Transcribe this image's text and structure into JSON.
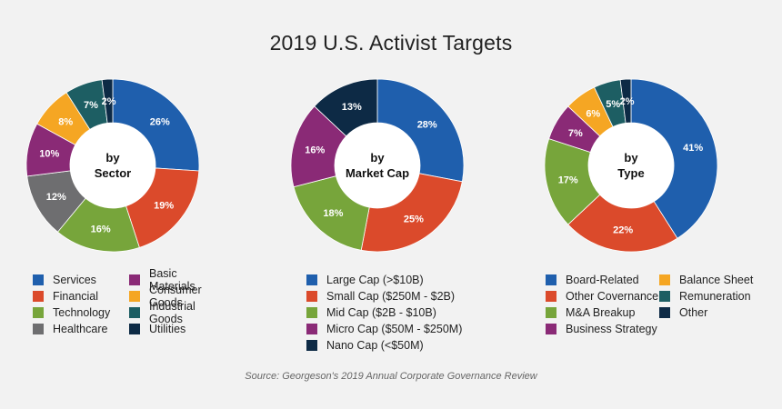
{
  "title": "2019 U.S. Activist Targets",
  "source": "Source: Georgeson's 2019 Annual Corporate Governance Review",
  "chart_data": [
    {
      "type": "pie",
      "center_label": [
        "by",
        "Sector"
      ],
      "categories": [
        "Services",
        "Financial",
        "Technology",
        "Healthcare",
        "Basic Materials",
        "Consumer Goods",
        "Industrial Goods",
        "Utilities"
      ],
      "values": [
        26,
        19,
        16,
        12,
        10,
        8,
        7,
        2
      ],
      "labels": [
        "26%",
        "19%",
        "16%",
        "12%",
        "10%",
        "8%",
        "7%",
        "2%"
      ],
      "colors": [
        "#1f5fad",
        "#db4a2b",
        "#77a53b",
        "#6e6e70",
        "#8a2a76",
        "#f5a623",
        "#1d5e63",
        "#0d2a45"
      ]
    },
    {
      "type": "pie",
      "center_label": [
        "by",
        "Market Cap"
      ],
      "categories": [
        "Large Cap (>$10B)",
        "Small Cap ($250M - $2B)",
        "Mid Cap ($2B - $10B)",
        "Micro Cap ($50M - $250M)",
        "Nano Cap (<$50M)"
      ],
      "values": [
        28,
        25,
        18,
        16,
        13
      ],
      "labels": [
        "28%",
        "25%",
        "18%",
        "16%",
        "13%"
      ],
      "colors": [
        "#1f5fad",
        "#db4a2b",
        "#77a53b",
        "#8a2a76",
        "#0d2a45"
      ]
    },
    {
      "type": "pie",
      "center_label": [
        "by",
        "Type"
      ],
      "categories": [
        "Board-Related",
        "Other Covernance",
        "M&A Breakup",
        "Business Strategy",
        "Balance Sheet",
        "Remuneration",
        "Other"
      ],
      "values": [
        41,
        22,
        17,
        7,
        6,
        5,
        2
      ],
      "labels": [
        "41%",
        "22%",
        "17%",
        "7%",
        "6%",
        "5%",
        "2%"
      ],
      "colors": [
        "#1f5fad",
        "#db4a2b",
        "#77a53b",
        "#8a2a76",
        "#f5a623",
        "#1d5e63",
        "#0d2a45"
      ]
    }
  ]
}
